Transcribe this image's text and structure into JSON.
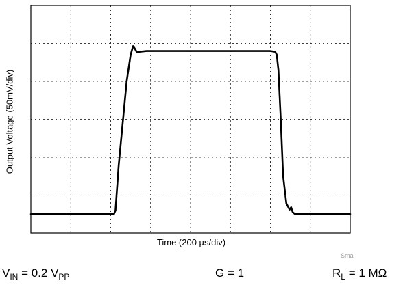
{
  "chart_data": {
    "type": "line",
    "xlabel": "Time (200 µs/div)",
    "ylabel": "Output Voltage (50mV/div)",
    "x_unit_per_div": "200 µs",
    "y_unit_per_div": "50 mV",
    "x_divisions": 8,
    "y_divisions": 6,
    "grid": true,
    "series": [
      {
        "x": [
          0,
          2.08,
          2.12,
          2.2,
          2.4,
          2.5,
          2.56,
          2.6,
          2.66,
          2.72,
          2.8,
          2.9,
          3.0,
          3.1,
          6.0,
          6.12,
          6.16,
          6.2,
          6.26,
          6.32,
          6.4,
          6.48,
          6.52,
          6.56,
          6.62,
          6.7,
          8.0
        ],
        "y": [
          0.5,
          0.5,
          0.6,
          1.8,
          4.0,
          4.7,
          4.93,
          4.87,
          4.76,
          4.78,
          4.79,
          4.8,
          4.8,
          4.8,
          4.8,
          4.78,
          4.7,
          4.3,
          3.0,
          1.5,
          0.78,
          0.62,
          0.68,
          0.55,
          0.5,
          0.5,
          0.5
        ]
      }
    ]
  },
  "conditions": {
    "vin": {
      "main": "V",
      "sub": "IN",
      "rest": " = 0.2 V",
      "sub2": "PP"
    },
    "gain": "G = 1",
    "load": {
      "main": "R",
      "sub": "L",
      "rest": " = 1 MΩ"
    },
    "small_note": "Smal"
  }
}
